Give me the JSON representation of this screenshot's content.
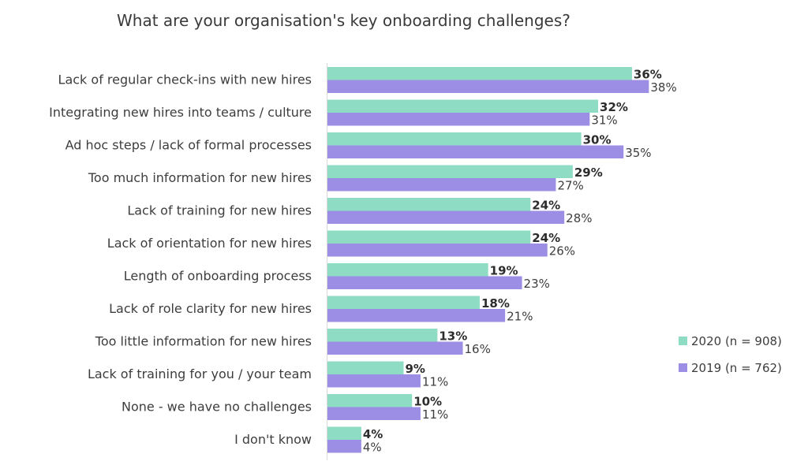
{
  "chart_data": {
    "type": "bar",
    "orientation": "horizontal",
    "title": "What are your organisation's key onboarding challenges?",
    "xlabel": "",
    "ylabel": "",
    "xlim": [
      0,
      100
    ],
    "grid": false,
    "legend_position": "right",
    "categories": [
      "Lack of regular check-ins with new hires",
      "Integrating new hires into teams / culture",
      "Ad hoc steps / lack of formal processes",
      "Too much information for new hires",
      "Lack of training for new hires",
      "Lack of orientation for new hires",
      "Length of onboarding process",
      "Lack of role clarity for new hires",
      "Too little information for new hires",
      "Lack of training for you / your team",
      "None - we have no challenges",
      "I don't know"
    ],
    "series": [
      {
        "name": "2020 (n = 908)",
        "color": "#8ddcc3",
        "label_style": "bold",
        "values": [
          36,
          32,
          30,
          29,
          24,
          24,
          19,
          18,
          13,
          9,
          10,
          4
        ]
      },
      {
        "name": "2019 (n = 762)",
        "color": "#9b8ee4",
        "label_style": "normal",
        "values": [
          38,
          31,
          35,
          27,
          28,
          26,
          23,
          21,
          16,
          11,
          11,
          4
        ]
      }
    ],
    "value_suffix": "%"
  }
}
